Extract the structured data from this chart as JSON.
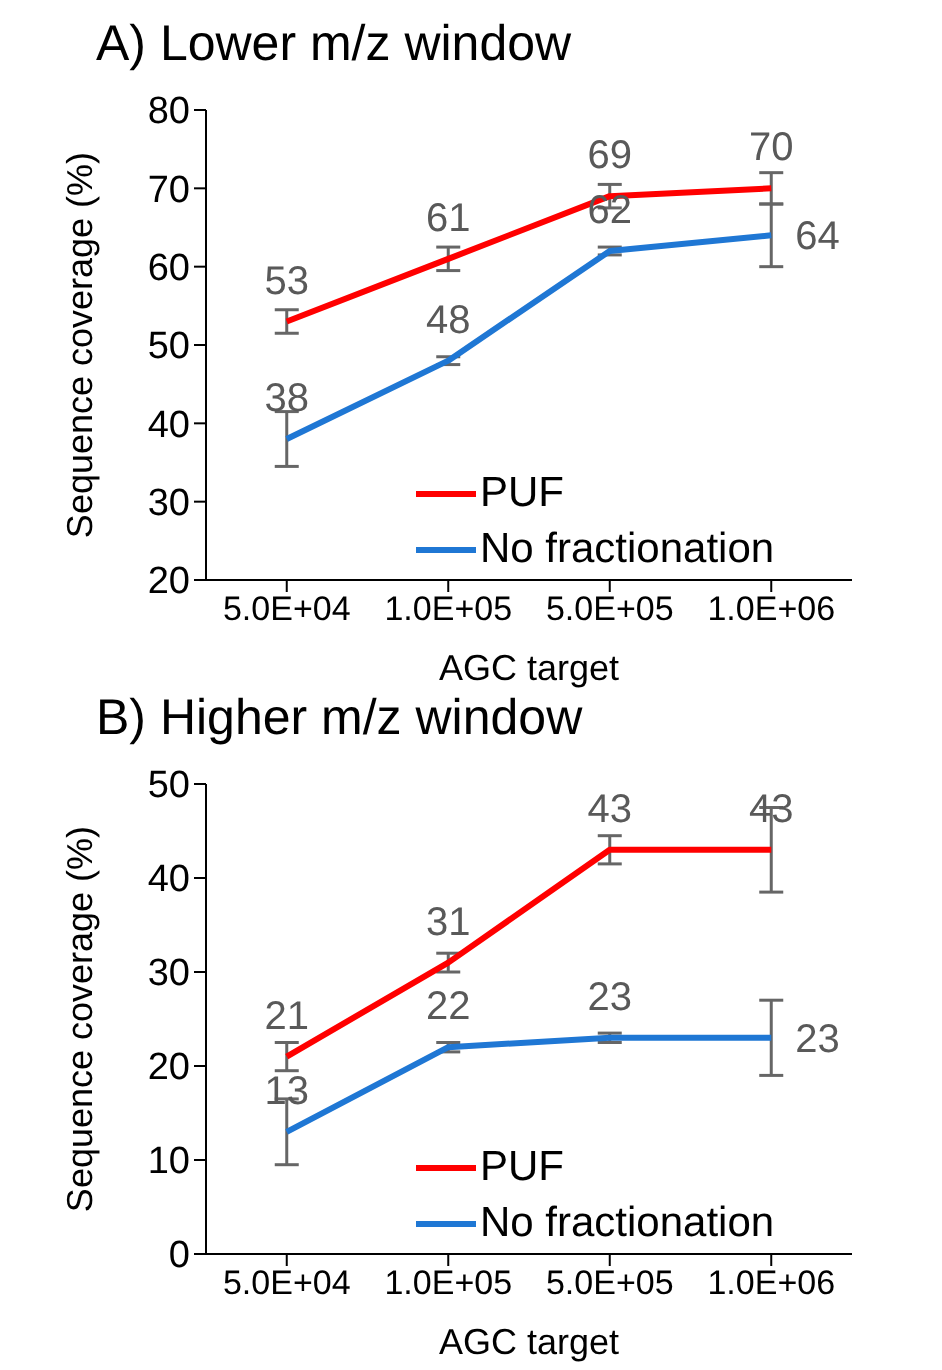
{
  "chart_data": [
    {
      "type": "line",
      "title": "A) Lower m/z window",
      "xlabel": "AGC target",
      "ylabel": "Sequence coverage (%)",
      "categories": [
        "5.0E+04",
        "1.0E+05",
        "5.0E+05",
        "1.0E+06"
      ],
      "series": [
        {
          "name": "PUF",
          "color": "#ff0000",
          "values": [
            53,
            61,
            69,
            70
          ],
          "errors": [
            1.5,
            1.5,
            1.5,
            2
          ]
        },
        {
          "name": "No fractionation",
          "color": "#1f77d4",
          "values": [
            38,
            48,
            62,
            64
          ],
          "errors": [
            3.5,
            0.5,
            0.5,
            4
          ]
        }
      ],
      "ylim": [
        20,
        80
      ],
      "yticks": [
        20,
        30,
        40,
        50,
        60,
        70,
        80
      ],
      "grid": false,
      "legend": "bottom right",
      "marker": "none",
      "data_labels": true
    },
    {
      "type": "line",
      "title": "B) Higher m/z window",
      "xlabel": "AGC target",
      "ylabel": "Sequence coverage (%)",
      "categories": [
        "5.0E+04",
        "1.0E+05",
        "5.0E+05",
        "1.0E+06"
      ],
      "series": [
        {
          "name": "PUF",
          "color": "#ff0000",
          "values": [
            21,
            31,
            43,
            43
          ],
          "errors": [
            1.5,
            1,
            1.5,
            4.5
          ]
        },
        {
          "name": "No fractionation",
          "color": "#1f77d4",
          "values": [
            13,
            22,
            23,
            23
          ],
          "errors": [
            3.5,
            0.5,
            0.5,
            4
          ]
        }
      ],
      "ylim": [
        0,
        50
      ],
      "yticks": [
        0,
        10,
        20,
        30,
        40,
        50
      ],
      "grid": false,
      "legend": "bottom right",
      "marker": "none",
      "data_labels": true
    }
  ]
}
